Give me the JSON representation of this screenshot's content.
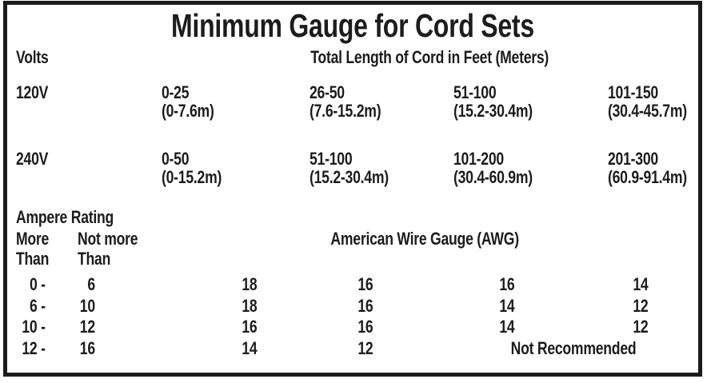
{
  "title": "Minimum Gauge for Cord Sets",
  "headers": {
    "volts": "Volts",
    "total_length": "Total Length of Cord in Feet (Meters)"
  },
  "volt_rows": [
    {
      "volts": "120V",
      "ranges": [
        {
          "feet": "0-25",
          "meters": "(0-7.6m)"
        },
        {
          "feet": "26-50",
          "meters": "(7.6-15.2m)"
        },
        {
          "feet": "51-100",
          "meters": "(15.2-30.4m)"
        },
        {
          "feet": "101-150",
          "meters": "(30.4-45.7m)"
        }
      ]
    },
    {
      "volts": "240V",
      "ranges": [
        {
          "feet": "0-50",
          "meters": "(0-15.2m)"
        },
        {
          "feet": "51-100",
          "meters": "(15.2-30.4m)"
        },
        {
          "feet": "101-200",
          "meters": "(30.4-60.9m)"
        },
        {
          "feet": "201-300",
          "meters": "(60.9-91.4m)"
        }
      ]
    }
  ],
  "ampere_section": {
    "heading": "Ampere Rating",
    "more_col": {
      "line1": "More",
      "line2": "Than"
    },
    "not_more_col": {
      "line1": "Not more",
      "line2": "Than"
    },
    "awg_header": "American Wire Gauge (AWG)",
    "rows": [
      {
        "more": "0 -",
        "not_more": "6",
        "awg": [
          "18",
          "16",
          "16",
          "14"
        ]
      },
      {
        "more": "6 -",
        "not_more": "10",
        "awg": [
          "18",
          "16",
          "14",
          "12"
        ]
      },
      {
        "more": "10 -",
        "not_more": "12",
        "awg": [
          "16",
          "16",
          "14",
          "12"
        ]
      },
      {
        "more": "12 -",
        "not_more": "16",
        "awg": [
          "14",
          "12"
        ],
        "note": "Not Recommended"
      }
    ]
  },
  "colors": {
    "text": "#1c1c1c",
    "border": "#1b1b1b",
    "background": "#ffffff"
  }
}
